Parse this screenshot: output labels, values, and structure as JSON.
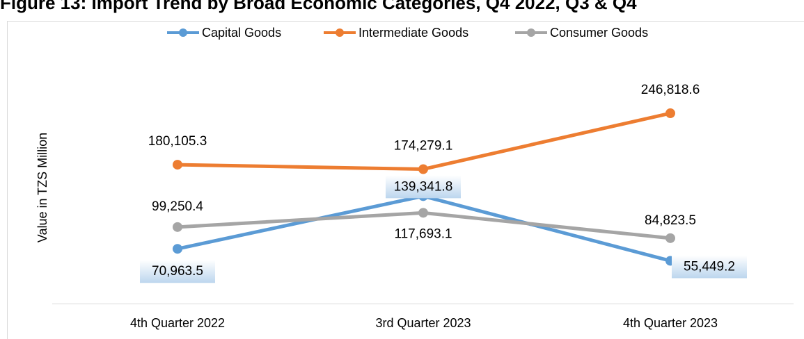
{
  "chart_data": {
    "type": "line",
    "title": "Figure 13: Import Trend by Broad Economic Categories, Q4 2022, Q3 & Q4",
    "ylabel": "Value in TZS Million",
    "categories": [
      "4th  Quarter 2022",
      "3rd Quarter 2023",
      "4th Quarter 2023"
    ],
    "series": [
      {
        "name": "Capital Goods",
        "color": "#5b9bd5",
        "values": [
          70963.5,
          139341.8,
          55449.2
        ],
        "value_labels": [
          "70,963.5",
          "139,341.8",
          "55,449.2"
        ]
      },
      {
        "name": "Intermediate Goods",
        "color": "#ed7d31",
        "values": [
          180105.3,
          174279.1,
          246818.6
        ],
        "value_labels": [
          "180,105.3",
          "174,279.1",
          "246,818.6"
        ]
      },
      {
        "name": "Consumer Goods",
        "color": "#a5a5a5",
        "values": [
          99250.4,
          117693.1,
          84823.5
        ],
        "value_labels": [
          "99,250.4",
          "117,693.1",
          "84,823.5"
        ]
      }
    ],
    "ylim": [
      0,
      300000
    ],
    "legend": "top"
  }
}
